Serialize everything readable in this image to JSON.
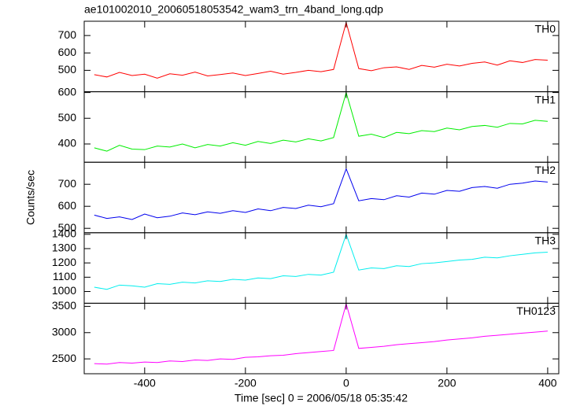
{
  "chart_data": {
    "type": "line",
    "title": "ae101002010_20060518053542_wam3_trn_4band_long.qdp",
    "x_label": "Time [sec] 0 = 2006/05/18 05:35:42",
    "y_label": "Counts/sec",
    "x": [
      -500,
      -475,
      -450,
      -425,
      -400,
      -375,
      -350,
      -325,
      -300,
      -275,
      -250,
      -225,
      -200,
      -175,
      -150,
      -125,
      -100,
      -75,
      -50,
      -25,
      0,
      25,
      50,
      75,
      100,
      125,
      150,
      175,
      200,
      225,
      250,
      275,
      300,
      325,
      350,
      375,
      400
    ],
    "xlim": [
      -520,
      422
    ],
    "xticks": [
      -400,
      -200,
      0,
      200,
      400
    ],
    "series": [
      {
        "name": "TH0",
        "color": "#ff0000",
        "ylim": [
          377,
          782
        ],
        "yticks": [
          500,
          600,
          700
        ],
        "values": [
          475,
          462,
          488,
          470,
          478,
          455,
          480,
          472,
          490,
          468,
          476,
          485,
          470,
          482,
          495,
          478,
          488,
          500,
          492,
          505,
          775,
          510,
          498,
          515,
          520,
          505,
          528,
          518,
          535,
          525,
          540,
          548,
          530,
          555,
          545,
          562,
          558
        ]
      },
      {
        "name": "TH1",
        "color": "#00ee00",
        "ylim": [
          329,
          603
        ],
        "yticks": [
          400,
          500,
          600
        ],
        "values": [
          385,
          372,
          395,
          380,
          378,
          392,
          388,
          400,
          385,
          398,
          392,
          405,
          395,
          410,
          402,
          415,
          408,
          420,
          412,
          425,
          600,
          430,
          438,
          425,
          445,
          440,
          452,
          448,
          462,
          455,
          468,
          472,
          465,
          480,
          478,
          492,
          488
        ]
      },
      {
        "name": "TH2",
        "color": "#0000ee",
        "ylim": [
          480,
          800
        ],
        "yticks": [
          500,
          600,
          700
        ],
        "values": [
          560,
          545,
          552,
          540,
          565,
          548,
          555,
          570,
          562,
          575,
          568,
          580,
          572,
          588,
          580,
          595,
          590,
          605,
          598,
          612,
          770,
          625,
          635,
          630,
          648,
          642,
          660,
          655,
          672,
          668,
          685,
          690,
          682,
          700,
          705,
          715,
          710
        ]
      },
      {
        "name": "TH3",
        "color": "#00eeee",
        "ylim": [
          918,
          1411
        ],
        "yticks": [
          1000,
          1100,
          1200,
          1300,
          1400
        ],
        "values": [
          1030,
          1015,
          1045,
          1040,
          1030,
          1055,
          1050,
          1065,
          1060,
          1075,
          1070,
          1085,
          1080,
          1095,
          1090,
          1110,
          1105,
          1120,
          1115,
          1135,
          1400,
          1150,
          1165,
          1160,
          1180,
          1175,
          1195,
          1200,
          1210,
          1220,
          1225,
          1240,
          1235,
          1250,
          1260,
          1270,
          1275
        ]
      },
      {
        "name": "TH0123",
        "color": "#ff00ff",
        "ylim": [
          2217,
          3560
        ],
        "yticks": [
          2500,
          3000,
          3500
        ],
        "values": [
          2410,
          2400,
          2430,
          2420,
          2440,
          2430,
          2460,
          2450,
          2480,
          2470,
          2500,
          2490,
          2530,
          2540,
          2560,
          2570,
          2600,
          2620,
          2640,
          2660,
          3550,
          2700,
          2720,
          2740,
          2770,
          2790,
          2810,
          2830,
          2860,
          2880,
          2900,
          2930,
          2950,
          2970,
          2990,
          3010,
          3030
        ]
      }
    ]
  }
}
